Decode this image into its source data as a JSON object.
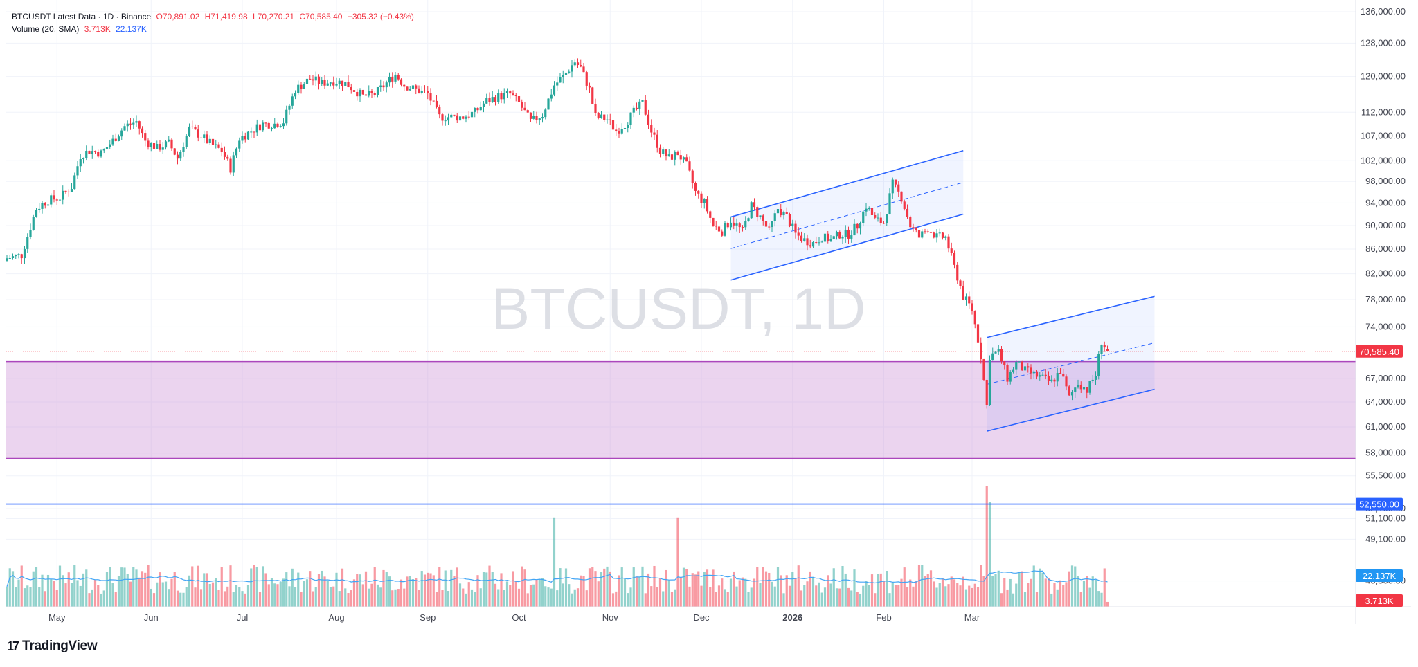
{
  "header": {
    "symbol_line": "BTCUSDT Latest Data · 1D · Binance",
    "open": "O70,891.02",
    "high": "H71,419.98",
    "low": "L70,270.21",
    "close": "C70,585.40",
    "change": "−305.32 (−0.43%)",
    "volume_label": "Volume (20, SMA)",
    "volume_value": "3.713K",
    "volume_sma": "22.137K"
  },
  "watermark": "BTCUSDT, 1D",
  "brand": {
    "logo": "17",
    "name": "TradingView"
  },
  "colors": {
    "up": "#26a69a",
    "down": "#f23645",
    "channel": "#2962ff",
    "zone": "#ce93d8",
    "sma": "#42a5f5",
    "grid": "#f0f3fa"
  },
  "tags": {
    "last_price": "70,585.40",
    "support_level": "52,550.00",
    "volume_sma": "22.137K",
    "volume": "3.713K"
  },
  "chart_data": {
    "type": "candlestick",
    "xlabels": [
      "May",
      "Jun",
      "Jul",
      "Aug",
      "Sep",
      "Oct",
      "Nov",
      "Dec",
      "2026",
      "Feb",
      "Mar"
    ],
    "ylabels": [
      "136,000.00",
      "128,000.00",
      "120,000.00",
      "112,000.00",
      "107,000.00",
      "102,000.00",
      "98,000.00",
      "94,000.00",
      "90,000.00",
      "86,000.00",
      "82,000.00",
      "78,000.00",
      "74,000.00",
      "67,000.00",
      "64,000.00",
      "61,000.00",
      "58,000.00",
      "55,500.00",
      "52,100.00",
      "51,100.00",
      "49,100.00",
      "45,300.00"
    ],
    "scale": "log",
    "last_price": 70585.4,
    "support_line": 52550,
    "demand_zone": [
      57400,
      69200
    ],
    "volume_sma_last": 22.137,
    "volume_last": 3.713,
    "price_path": [
      [
        0,
        84500
      ],
      [
        5,
        85000
      ],
      [
        10,
        93000
      ],
      [
        14,
        94500
      ],
      [
        18,
        95000
      ],
      [
        22,
        97000
      ],
      [
        25,
        103000
      ],
      [
        28,
        104000
      ],
      [
        32,
        103500
      ],
      [
        36,
        106000
      ],
      [
        40,
        109000
      ],
      [
        44,
        110000
      ],
      [
        47,
        106000
      ],
      [
        51,
        104500
      ],
      [
        55,
        105500
      ],
      [
        58,
        102500
      ],
      [
        62,
        108500
      ],
      [
        66,
        107000
      ],
      [
        70,
        105000
      ],
      [
        73,
        104000
      ],
      [
        76,
        100500
      ],
      [
        79,
        106500
      ],
      [
        83,
        108000
      ],
      [
        87,
        109500
      ],
      [
        91,
        109500
      ],
      [
        94,
        110000
      ],
      [
        98,
        117000
      ],
      [
        103,
        119500
      ],
      [
        107,
        118500
      ],
      [
        111,
        119000
      ],
      [
        115,
        118500
      ],
      [
        118,
        117000
      ],
      [
        121,
        115500
      ],
      [
        125,
        116000
      ],
      [
        129,
        118500
      ],
      [
        132,
        120500
      ],
      [
        135,
        118000
      ],
      [
        139,
        117000
      ],
      [
        143,
        116000
      ],
      [
        147,
        111000
      ],
      [
        151,
        111000
      ],
      [
        155,
        111000
      ],
      [
        159,
        112000
      ],
      [
        163,
        114500
      ],
      [
        167,
        115500
      ],
      [
        171,
        116000
      ],
      [
        174,
        114000
      ],
      [
        178,
        110000
      ],
      [
        182,
        111500
      ],
      [
        186,
        118000
      ],
      [
        189,
        120000
      ],
      [
        193,
        123500
      ],
      [
        195,
        122000
      ],
      [
        198,
        117000
      ],
      [
        200,
        111000
      ],
      [
        204,
        110500
      ],
      [
        207,
        108000
      ],
      [
        210,
        109500
      ],
      [
        213,
        112000
      ],
      [
        216,
        114000
      ],
      [
        219,
        108000
      ],
      [
        222,
        104000
      ],
      [
        225,
        102500
      ],
      [
        228,
        103500
      ],
      [
        231,
        101000
      ],
      [
        234,
        96000
      ],
      [
        237,
        94000
      ],
      [
        240,
        90000
      ],
      [
        243,
        89000
      ],
      [
        246,
        91000
      ],
      [
        250,
        89000
      ],
      [
        253,
        93500
      ],
      [
        256,
        91500
      ],
      [
        259,
        89000
      ],
      [
        262,
        93000
      ],
      [
        265,
        91500
      ],
      [
        268,
        88500
      ],
      [
        271,
        87500
      ],
      [
        274,
        87000
      ],
      [
        277,
        88000
      ],
      [
        280,
        87500
      ],
      [
        283,
        88500
      ],
      [
        286,
        88500
      ],
      [
        289,
        90000
      ],
      [
        292,
        93500
      ],
      [
        295,
        91000
      ],
      [
        298,
        90500
      ],
      [
        301,
        97500
      ],
      [
        304,
        95000
      ],
      [
        307,
        90000
      ],
      [
        310,
        88000
      ],
      [
        313,
        89500
      ],
      [
        316,
        88000
      ],
      [
        319,
        88000
      ],
      [
        322,
        83000
      ],
      [
        325,
        78500
      ],
      [
        328,
        76500
      ],
      [
        331,
        70000
      ],
      [
        333,
        63500
      ],
      [
        334,
        70000
      ],
      [
        337,
        70500
      ],
      [
        340,
        67000
      ],
      [
        343,
        69000
      ],
      [
        346,
        68000
      ],
      [
        349,
        67500
      ],
      [
        352,
        67000
      ],
      [
        355,
        66500
      ],
      [
        358,
        68000
      ],
      [
        361,
        64500
      ],
      [
        364,
        66500
      ],
      [
        367,
        65500
      ],
      [
        370,
        67500
      ],
      [
        372,
        72000
      ],
      [
        374,
        70585
      ]
    ],
    "channels": [
      {
        "name": "upper-channel",
        "start": [
          246,
          91500
        ],
        "end": [
          325,
          104000
        ],
        "lower_start": [
          246,
          81000
        ],
        "lower_end": [
          325,
          92000
        ]
      },
      {
        "name": "lower-channel",
        "start": [
          333,
          72500
        ],
        "end": [
          390,
          78500
        ],
        "lower_start": [
          333,
          60500
        ],
        "lower_end": [
          390,
          65600
        ]
      }
    ]
  }
}
